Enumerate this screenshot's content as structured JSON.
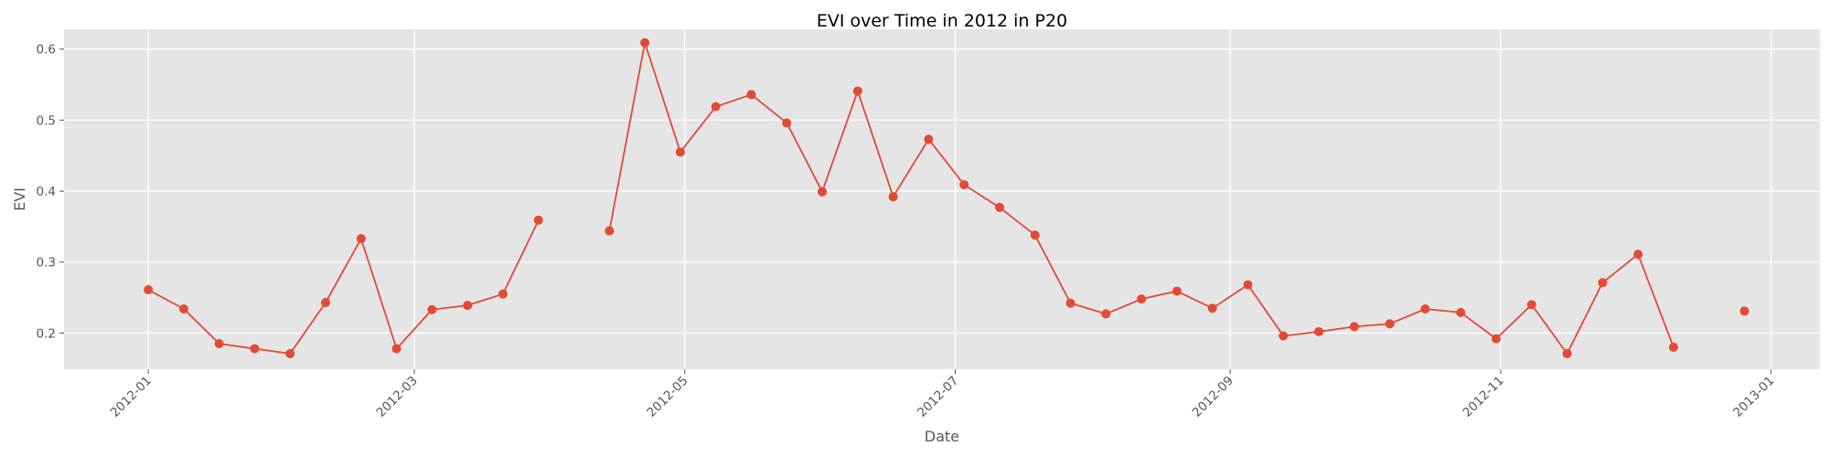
{
  "chart_data": {
    "type": "line",
    "title": "EVI over Time in 2012 in P20",
    "xlabel": "Date",
    "ylabel": "EVI",
    "x_ticks": [
      "2012-01",
      "2012-03",
      "2012-05",
      "2012-07",
      "2012-09",
      "2012-11",
      "2013-01"
    ],
    "y_ticks": [
      "0.2",
      "0.3",
      "0.4",
      "0.5",
      "0.6"
    ],
    "xlim": [
      "2011-12-13",
      "2013-01-12"
    ],
    "ylim": [
      0.149,
      0.628
    ],
    "grid": true,
    "colors": {
      "background": "#e5e5e5",
      "line": "#e24a33",
      "grid": "#ffffff"
    },
    "series": [
      {
        "points": [
          [
            "2012-01-01",
            0.261
          ],
          [
            "2012-01-09",
            0.234
          ],
          [
            "2012-01-17",
            0.185
          ],
          [
            "2012-01-25",
            0.178
          ],
          [
            "2012-02-02",
            0.171
          ],
          [
            "2012-02-10",
            0.243
          ],
          [
            "2012-02-18",
            0.333
          ],
          [
            "2012-02-26",
            0.178
          ],
          [
            "2012-03-05",
            0.233
          ],
          [
            "2012-03-13",
            0.239
          ],
          [
            "2012-03-21",
            0.255
          ],
          [
            "2012-03-29",
            0.359
          ],
          [
            "2012-04-06",
            null
          ],
          [
            "2012-04-14",
            0.344
          ],
          [
            "2012-04-22",
            0.609
          ],
          [
            "2012-04-30",
            0.455
          ],
          [
            "2012-05-08",
            0.519
          ],
          [
            "2012-05-16",
            0.536
          ],
          [
            "2012-05-24",
            0.496
          ],
          [
            "2012-06-01",
            0.399
          ],
          [
            "2012-06-09",
            0.541
          ],
          [
            "2012-06-17",
            0.392
          ],
          [
            "2012-06-25",
            0.473
          ],
          [
            "2012-07-03",
            0.409
          ],
          [
            "2012-07-11",
            0.377
          ],
          [
            "2012-07-19",
            0.338
          ],
          [
            "2012-07-27",
            0.242
          ],
          [
            "2012-08-04",
            0.227
          ],
          [
            "2012-08-12",
            0.248
          ],
          [
            "2012-08-20",
            0.259
          ],
          [
            "2012-08-28",
            0.235
          ],
          [
            "2012-09-05",
            0.268
          ],
          [
            "2012-09-13",
            0.196
          ],
          [
            "2012-09-21",
            0.202
          ],
          [
            "2012-09-29",
            0.209
          ],
          [
            "2012-10-07",
            0.213
          ],
          [
            "2012-10-15",
            0.234
          ],
          [
            "2012-10-23",
            0.229
          ],
          [
            "2012-10-31",
            0.192
          ],
          [
            "2012-11-08",
            0.24
          ],
          [
            "2012-11-16",
            0.171
          ],
          [
            "2012-11-24",
            0.271
          ],
          [
            "2012-12-02",
            0.311
          ],
          [
            "2012-12-10",
            0.18
          ],
          [
            "2012-12-18",
            null
          ],
          [
            "2012-12-26",
            0.231
          ]
        ]
      }
    ]
  }
}
